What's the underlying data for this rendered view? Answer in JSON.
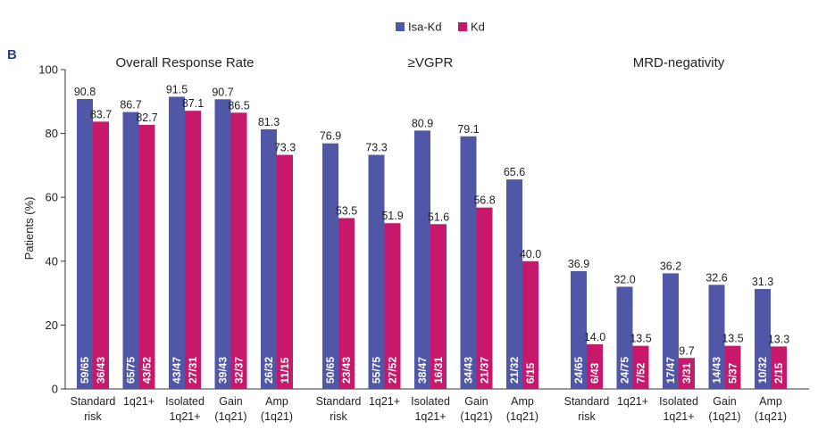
{
  "panel_label": "B",
  "legend": [
    {
      "name": "Isa-Kd",
      "color": "#4f57a6"
    },
    {
      "name": "Kd",
      "color": "#c8186c"
    }
  ],
  "chart_data": {
    "type": "bar",
    "ylabel": "Patients (%)",
    "ylim": [
      0,
      100
    ],
    "yticks": [
      0,
      20,
      40,
      60,
      80,
      100
    ],
    "categories": [
      [
        "Standard",
        "risk"
      ],
      [
        "1q21+"
      ],
      [
        "Isolated",
        "1q21+"
      ],
      [
        "Gain",
        "(1q21)"
      ],
      [
        "Amp",
        "(1q21)"
      ]
    ],
    "series_names": [
      "Isa-Kd",
      "Kd"
    ],
    "groups": [
      {
        "title": "Overall Response Rate",
        "isa_values": [
          90.8,
          86.7,
          91.5,
          90.7,
          81.3
        ],
        "isa_labels": [
          "90.8",
          "86.7",
          "91.5",
          "90.7",
          "81.3"
        ],
        "isa_counts": [
          "59/65",
          "65/75",
          "43/47",
          "39/43",
          "26/32"
        ],
        "kd_values": [
          83.7,
          82.7,
          87.1,
          86.5,
          73.3
        ],
        "kd_labels": [
          "83.7",
          "82.7",
          "87.1",
          "86.5",
          "73.3"
        ],
        "kd_counts": [
          "36/43",
          "43/52",
          "27/31",
          "32/37",
          "11/15"
        ]
      },
      {
        "title": "≥VGPR",
        "isa_values": [
          76.9,
          73.3,
          80.9,
          79.1,
          65.6
        ],
        "isa_labels": [
          "76.9",
          "73.3",
          "80.9",
          "79.1",
          "65.6"
        ],
        "isa_counts": [
          "50/65",
          "55/75",
          "38/47",
          "34/43",
          "21/32"
        ],
        "kd_values": [
          53.5,
          51.9,
          51.6,
          56.8,
          40.0
        ],
        "kd_labels": [
          "53.5",
          "51.9",
          "51.6",
          "56.8",
          "40.0"
        ],
        "kd_counts": [
          "23/43",
          "27/52",
          "16/31",
          "21/37",
          "6/15"
        ]
      },
      {
        "title": "MRD-negativity",
        "isa_values": [
          36.9,
          32.0,
          36.2,
          32.6,
          31.3
        ],
        "isa_labels": [
          "36.9",
          "32.0",
          "36.2",
          "32.6",
          "31.3"
        ],
        "isa_counts": [
          "24/65",
          "24/75",
          "17/47",
          "14/43",
          "10/32"
        ],
        "kd_values": [
          14.0,
          13.5,
          9.7,
          13.5,
          13.3
        ],
        "kd_labels": [
          "14.0",
          "13.5",
          "9.7",
          "13.5",
          "13.3"
        ],
        "kd_counts": [
          "6/43",
          "7/52",
          "3/31",
          "5/37",
          "2/15"
        ]
      }
    ]
  }
}
